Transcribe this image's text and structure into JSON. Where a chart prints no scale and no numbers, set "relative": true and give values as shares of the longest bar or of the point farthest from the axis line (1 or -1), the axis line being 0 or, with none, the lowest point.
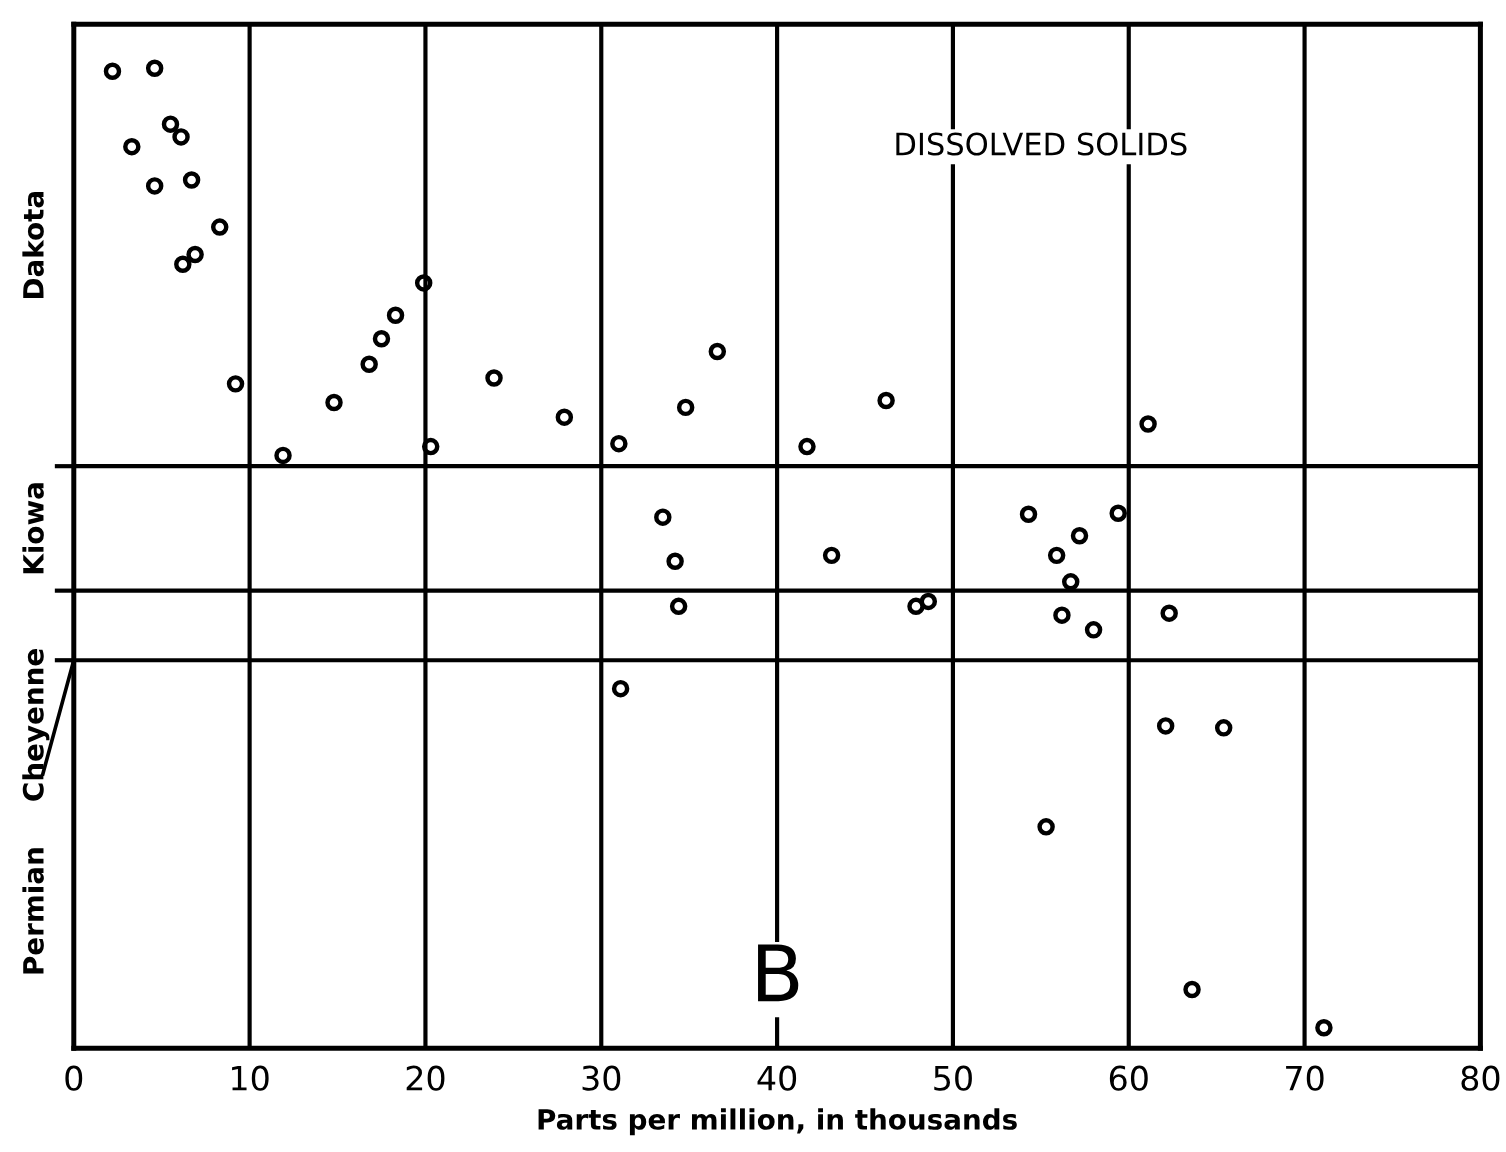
{
  "chart_data": {
    "type": "scatter",
    "xlabel": "Parts per million, in thousands",
    "relative": true,
    "x": [
      2.2,
      4.6,
      3.3,
      5.5,
      6.1,
      4.6,
      6.7,
      8.3,
      6.2,
      6.9,
      9.2,
      11.9,
      14.8,
      16.8,
      17.5,
      18.3,
      19.9,
      20.3,
      23.9,
      27.9,
      31.0,
      34.8,
      36.6,
      41.7,
      46.2,
      61.1,
      33.5,
      34.2,
      43.1,
      54.3,
      59.4,
      57.2,
      55.9,
      56.7,
      34.4,
      47.9,
      48.6,
      56.2,
      58.0,
      62.3,
      31.1,
      62.1,
      65.4,
      55.3,
      63.6,
      71.1
    ],
    "values": [
      0.997,
      1.0,
      0.92,
      0.943,
      0.93,
      0.88,
      0.886,
      0.838,
      0.8,
      0.81,
      0.678,
      0.605,
      0.659,
      0.698,
      0.724,
      0.748,
      0.781,
      0.614,
      0.684,
      0.644,
      0.617,
      0.654,
      0.711,
      0.614,
      0.661,
      0.637,
      0.542,
      0.497,
      0.503,
      0.545,
      0.546,
      0.523,
      0.503,
      0.476,
      0.451,
      0.451,
      0.456,
      0.442,
      0.427,
      0.444,
      0.367,
      0.329,
      0.327,
      0.226,
      0.06,
      0.021
    ],
    "color": "#000000",
    "marker": "circle",
    "xlim": [
      0,
      80
    ],
    "xticks": [
      0,
      10,
      20,
      30,
      40,
      50,
      60,
      70,
      80
    ],
    "grid": "x",
    "ref_lines": [
      {
        "axis": "y",
        "value": 0.594,
        "color": "#000000"
      },
      {
        "axis": "y",
        "value": 0.467,
        "color": "#000000"
      },
      {
        "axis": "y",
        "value": 0.396,
        "color": "#000000"
      }
    ],
    "annotations": [
      "Dakota",
      "Kiowa",
      "Cheyenne",
      "Permian",
      "DISSOLVED SOLIDS",
      "B"
    ]
  }
}
